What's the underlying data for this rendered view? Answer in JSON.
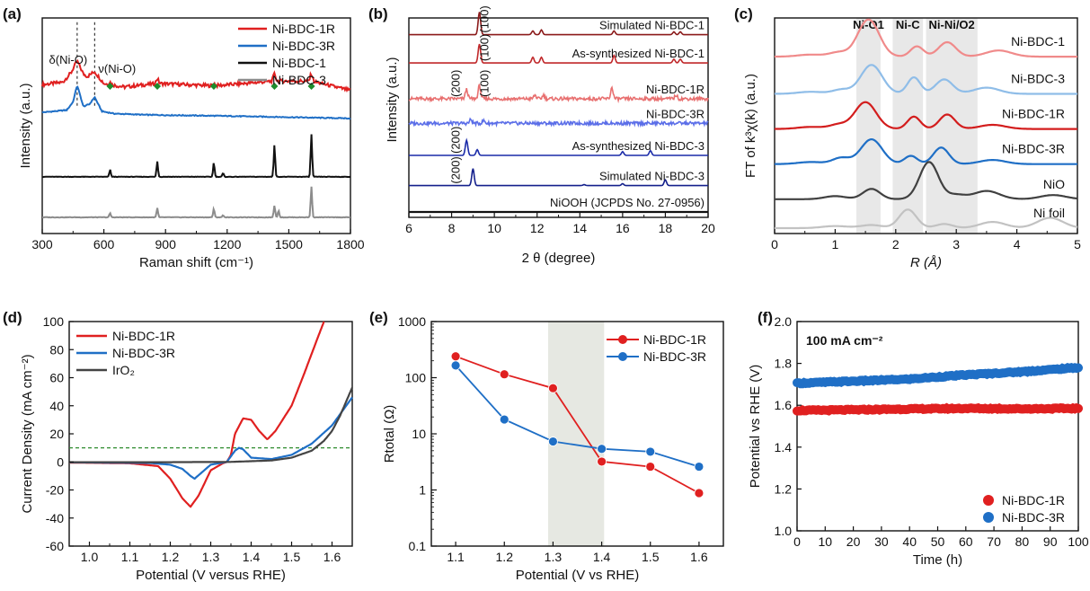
{
  "chart_data": [
    {
      "id": "a",
      "panel_label": "(a)",
      "type": "line",
      "title": "",
      "xlabel": "Raman shift (cm⁻¹)",
      "ylabel": "Intensity (a.u.)",
      "xlim": [
        300,
        1800
      ],
      "xticks": [
        "300",
        "600",
        "900",
        "1200",
        "1500",
        "1800"
      ],
      "peak_labels": [
        "δ(Ni-O)",
        "ν(Ni-O)"
      ],
      "peak_positions": [
        470,
        555
      ],
      "diamond_markers": [
        630,
        860,
        1135,
        1430,
        1610
      ],
      "legend_position": "top-right",
      "series": [
        {
          "name": "Ni-BDC-1R",
          "color": "#e02020",
          "offset": 0.78,
          "x": [
            300,
            400,
            440,
            470,
            500,
            520,
            555,
            600,
            700,
            860,
            1135,
            1430,
            1610,
            1800
          ],
          "y": [
            0.05,
            0.07,
            0.15,
            0.25,
            0.14,
            0.12,
            0.16,
            0.06,
            0.03,
            0.06,
            0.04,
            0.08,
            0.08,
            0.0
          ]
        },
        {
          "name": "Ni-BDC-3R",
          "color": "#1f6fc6",
          "offset": 0.58,
          "x": [
            300,
            420,
            450,
            470,
            500,
            530,
            555,
            590,
            650,
            800,
            1000,
            1200,
            1500,
            1800
          ],
          "y": [
            0.03,
            0.05,
            0.12,
            0.26,
            0.08,
            0.1,
            0.16,
            0.04,
            0.02,
            0.01,
            0.005,
            0.0,
            -0.01,
            -0.02
          ]
        },
        {
          "name": "Ni-BDC-1",
          "color": "#111111",
          "offset": 0.28,
          "x": [
            300,
            630,
            860,
            1135,
            1180,
            1430,
            1610,
            1800
          ],
          "y": [
            0.0,
            0.06,
            0.13,
            0.12,
            0.03,
            0.27,
            0.36,
            0.0
          ]
        },
        {
          "name": "Ni-BDC-3",
          "color": "#8c8c8c",
          "offset": 0.08,
          "x": [
            300,
            630,
            860,
            1135,
            1180,
            1430,
            1610,
            1800
          ],
          "y": [
            0.0,
            0.04,
            0.09,
            0.06,
            0.03,
            0.11,
            0.26,
            0.0
          ]
        }
      ]
    },
    {
      "id": "b",
      "panel_label": "(b)",
      "type": "line",
      "title": "",
      "xlabel": "2 θ (degree)",
      "ylabel": "Intensity (a.u.)",
      "xlim": [
        6,
        20
      ],
      "xticks": [
        "6",
        "8",
        "10",
        "12",
        "14",
        "16",
        "18",
        "20"
      ],
      "series": [
        {
          "name": "Simulated Ni-BDC-1",
          "color": "#8b1a1a",
          "offset": 0.94,
          "peaks": [
            [
              9.3,
              0.12
            ],
            [
              11.8,
              0.02
            ],
            [
              12.2,
              0.025
            ],
            [
              15.6,
              0.02
            ],
            [
              18.4,
              0.015
            ],
            [
              18.7,
              0.015
            ]
          ],
          "peak_label": "(100)",
          "peak_label_x": 9.55
        },
        {
          "name": "As-synthesized Ni-BDC-1",
          "color": "#c0282a",
          "offset": 0.79,
          "peaks": [
            [
              9.3,
              0.1
            ],
            [
              11.8,
              0.03
            ],
            [
              12.2,
              0.03
            ],
            [
              15.6,
              0.04
            ],
            [
              18.4,
              0.02
            ],
            [
              18.7,
              0.02
            ]
          ],
          "peak_label": "(100)",
          "peak_label_x": 9.55
        },
        {
          "name": "Ni-BDC-1R",
          "color": "#e87070",
          "offset": 0.6,
          "peaks": [
            [
              8.7,
              0.05
            ],
            [
              9.3,
              0.07
            ],
            [
              11.9,
              0.02
            ],
            [
              12.3,
              0.02
            ],
            [
              15.5,
              0.06
            ],
            [
              18.5,
              0.02
            ]
          ],
          "peak_label": "(100)",
          "peak_label_x": 9.55,
          "peak_label2": "(200)",
          "peak_label2_x": 8.2
        },
        {
          "name": "Ni-BDC-3R",
          "color": "#5b6ee8",
          "offset": 0.47,
          "peaks": [
            [
              8.9,
              0.02
            ],
            [
              9.5,
              0.015
            ]
          ]
        },
        {
          "name": "As-synthesized Ni-BDC-3",
          "color": "#1a2aa8",
          "offset": 0.3,
          "peaks": [
            [
              8.7,
              0.08
            ],
            [
              9.2,
              0.03
            ],
            [
              16.0,
              0.02
            ],
            [
              17.3,
              0.025
            ]
          ],
          "peak_label2": "(200)",
          "peak_label2_x": 8.2
        },
        {
          "name": "Simulated Ni-BDC-3",
          "color": "#14208c",
          "offset": 0.14,
          "peaks": [
            [
              9.0,
              0.09
            ],
            [
              14.2,
              0.005
            ],
            [
              16.0,
              0.01
            ],
            [
              18.0,
              0.03
            ]
          ],
          "peak_label2": "(200)",
          "peak_label2_x": 8.2
        },
        {
          "name": "NiOOH (JCPDS No. 27-0956)",
          "color": "#111111",
          "offset": 0.0,
          "peaks": []
        }
      ]
    },
    {
      "id": "c",
      "panel_label": "(c)",
      "type": "line",
      "title": "",
      "xlabel": "R (Å)",
      "ylabel": "FT of k³χ(k) (a.u.)",
      "xlim": [
        0,
        5
      ],
      "xticks": [
        "0",
        "1",
        "2",
        "3",
        "4",
        "5"
      ],
      "regions": [
        {
          "label": "Ni-O1",
          "from": 1.35,
          "to": 1.75
        },
        {
          "label": "Ni-C",
          "from": 1.95,
          "to": 2.45
        },
        {
          "label": "Ni-Ni/O2",
          "from": 2.5,
          "to": 3.35
        }
      ],
      "series": [
        {
          "name": "Ni-BDC-1",
          "color": "#f08a8a",
          "offset": 0.83,
          "peaks": [
            [
              0.6,
              0.01,
              0.3
            ],
            [
              1.05,
              0.02,
              0.2
            ],
            [
              1.55,
              0.18,
              0.25
            ],
            [
              2.35,
              0.05,
              0.15
            ],
            [
              2.85,
              0.07,
              0.2
            ],
            [
              3.7,
              0.03,
              0.3
            ]
          ]
        },
        {
          "name": "Ni-BDC-3",
          "color": "#8fbde8",
          "offset": 0.65,
          "peaks": [
            [
              0.6,
              0.01,
              0.3
            ],
            [
              1.1,
              0.02,
              0.2
            ],
            [
              1.6,
              0.14,
              0.25
            ],
            [
              2.3,
              0.08,
              0.15
            ],
            [
              2.8,
              0.07,
              0.2
            ],
            [
              3.5,
              0.03,
              0.3
            ]
          ]
        },
        {
          "name": "Ni-BDC-1R",
          "color": "#d31d1d",
          "offset": 0.48,
          "peaks": [
            [
              0.6,
              0.01,
              0.3
            ],
            [
              1.05,
              0.02,
              0.2
            ],
            [
              1.5,
              0.13,
              0.25
            ],
            [
              2.3,
              0.06,
              0.15
            ],
            [
              2.85,
              0.07,
              0.18
            ],
            [
              3.6,
              0.02,
              0.3
            ]
          ]
        },
        {
          "name": "Ni-BDC-3R",
          "color": "#1f6fc6",
          "offset": 0.31,
          "peaks": [
            [
              0.6,
              0.01,
              0.3
            ],
            [
              1.1,
              0.03,
              0.2
            ],
            [
              1.6,
              0.12,
              0.25
            ],
            [
              2.25,
              0.04,
              0.15
            ],
            [
              2.75,
              0.08,
              0.18
            ],
            [
              3.6,
              0.02,
              0.3
            ]
          ]
        },
        {
          "name": "NiO",
          "color": "#404040",
          "offset": 0.14,
          "peaks": [
            [
              1.0,
              0.015,
              0.25
            ],
            [
              1.6,
              0.05,
              0.2
            ],
            [
              2.55,
              0.18,
              0.22
            ],
            [
              3.0,
              0.02,
              0.2
            ],
            [
              3.5,
              0.04,
              0.3
            ],
            [
              4.6,
              0.02,
              0.3
            ]
          ]
        },
        {
          "name": "Ni foil",
          "color": "#c2c2c2",
          "offset": 0.0,
          "peaks": [
            [
              1.0,
              0.01,
              0.3
            ],
            [
              1.6,
              0.015,
              0.25
            ],
            [
              2.2,
              0.09,
              0.2
            ],
            [
              2.8,
              0.02,
              0.2
            ],
            [
              3.6,
              0.03,
              0.3
            ],
            [
              4.55,
              0.05,
              0.3
            ]
          ]
        }
      ]
    },
    {
      "id": "d",
      "panel_label": "(d)",
      "type": "line",
      "title": "",
      "xlabel": "Potential (V versus RHE)",
      "ylabel": "Current Density (mA cm⁻²)",
      "xlim": [
        0.95,
        1.65
      ],
      "ylim": [
        -60,
        100
      ],
      "xticks": [
        "1.0",
        "1.1",
        "1.2",
        "1.3",
        "1.4",
        "1.5",
        "1.6"
      ],
      "yticks": [
        "-60",
        "-40",
        "-20",
        "0",
        "20",
        "40",
        "60",
        "80",
        "100"
      ],
      "reference_line": 10,
      "legend_position": "top-left",
      "series": [
        {
          "name": "Ni-BDC-1R",
          "color": "#e02020",
          "x": [
            0.95,
            1.1,
            1.17,
            1.2,
            1.23,
            1.25,
            1.27,
            1.3,
            1.33,
            1.34,
            1.35,
            1.36,
            1.38,
            1.4,
            1.42,
            1.44,
            1.46,
            1.5,
            1.53,
            1.56,
            1.58
          ],
          "y": [
            -0.5,
            -1,
            -3,
            -12,
            -26,
            -32,
            -24,
            -6,
            -1,
            0,
            5,
            20,
            31,
            30,
            22,
            16,
            22,
            40,
            62,
            85,
            100
          ]
        },
        {
          "name": "Ni-BDC-3R",
          "color": "#1f6fc6",
          "x": [
            0.95,
            1.15,
            1.2,
            1.23,
            1.25,
            1.26,
            1.28,
            1.3,
            1.34,
            1.36,
            1.37,
            1.38,
            1.4,
            1.45,
            1.5,
            1.55,
            1.6,
            1.65
          ],
          "y": [
            -0.3,
            -0.8,
            -2,
            -5,
            -10,
            -12,
            -7,
            -2,
            0,
            8,
            10,
            9,
            3,
            2,
            5,
            13,
            26,
            46
          ]
        },
        {
          "name": "IrO₂",
          "color": "#444444",
          "x": [
            0.95,
            1.2,
            1.35,
            1.45,
            1.5,
            1.55,
            1.58,
            1.6,
            1.62,
            1.65
          ],
          "y": [
            -0.2,
            -0.2,
            0,
            1,
            3,
            8,
            15,
            22,
            33,
            53
          ]
        }
      ]
    },
    {
      "id": "e",
      "panel_label": "(e)",
      "type": "line",
      "title": "",
      "xlabel": "Potential (V vs RHE)",
      "ylabel": "Rtotal (Ω)",
      "yscale": "log",
      "xlim": [
        1.05,
        1.65
      ],
      "ylim": [
        0.1,
        1000
      ],
      "xticks": [
        "1.1",
        "1.2",
        "1.3",
        "1.4",
        "1.5",
        "1.6"
      ],
      "yticks": [
        "0.1",
        "1",
        "10",
        "100",
        "1000"
      ],
      "shaded_region": [
        1.29,
        1.405
      ],
      "legend_position": "top-right",
      "series": [
        {
          "name": "Ni-BDC-1R",
          "color": "#e02020",
          "x": [
            1.1,
            1.2,
            1.3,
            1.4,
            1.5,
            1.6
          ],
          "y": [
            240,
            115,
            65,
            3.2,
            2.6,
            0.88
          ]
        },
        {
          "name": "Ni-BDC-3R",
          "color": "#1f6fc6",
          "x": [
            1.1,
            1.2,
            1.3,
            1.4,
            1.5,
            1.6
          ],
          "y": [
            165,
            18,
            7.3,
            5.4,
            4.8,
            2.6
          ]
        }
      ]
    },
    {
      "id": "f",
      "panel_label": "(f)",
      "type": "line",
      "title": "",
      "xlabel": "Time (h)",
      "ylabel": "Potential vs RHE (V)",
      "xlim": [
        0,
        100
      ],
      "ylim": [
        1.0,
        2.0
      ],
      "xticks": [
        "0",
        "10",
        "20",
        "30",
        "40",
        "50",
        "60",
        "70",
        "80",
        "90",
        "100"
      ],
      "yticks": [
        "1.0",
        "1.2",
        "1.4",
        "1.6",
        "1.8",
        "2.0"
      ],
      "annotation": "100 mA cm⁻²",
      "legend_position": "bottom-right",
      "series": [
        {
          "name": "Ni-BDC-1R",
          "color": "#e02020",
          "x": [
            0,
            20,
            40,
            60,
            80,
            100
          ],
          "y": [
            1.575,
            1.578,
            1.582,
            1.585,
            1.583,
            1.585
          ]
        },
        {
          "name": "Ni-BDC-3R",
          "color": "#1f6fc6",
          "x": [
            0,
            20,
            40,
            60,
            80,
            100
          ],
          "y": [
            1.705,
            1.715,
            1.725,
            1.745,
            1.76,
            1.78
          ]
        }
      ]
    }
  ]
}
